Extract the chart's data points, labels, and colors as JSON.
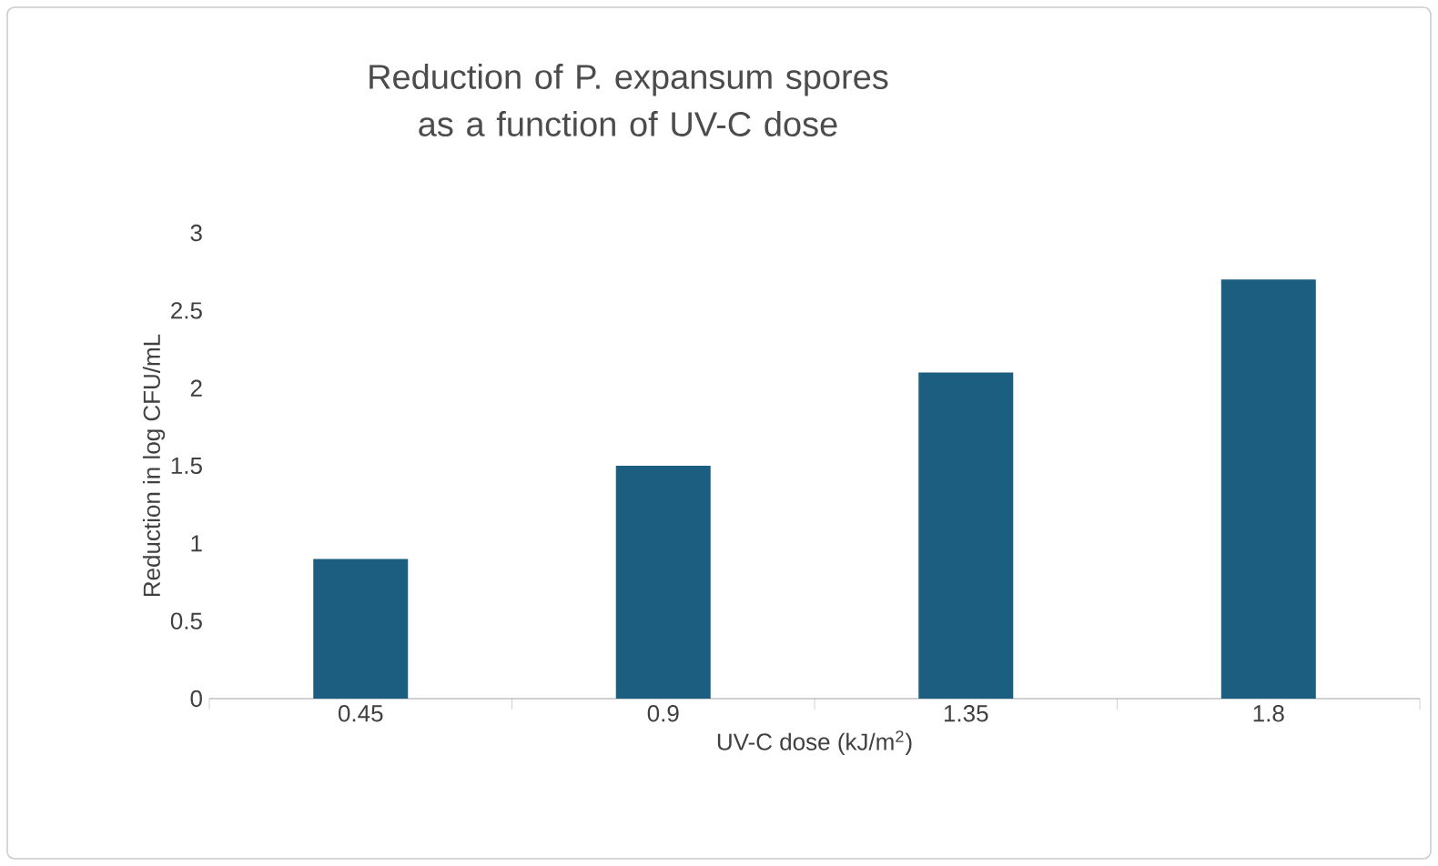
{
  "chart_data": {
    "type": "bar",
    "title": "Reduction of P. expansum spores as a function of UV-C dose",
    "categories": [
      "0.45",
      "0.9",
      "1.35",
      "1.8"
    ],
    "values": [
      0.9,
      1.5,
      2.1,
      2.7
    ],
    "color": "#1b5e80",
    "xlabel": "UV-C dose (kJ/m$^{2}$)",
    "ylabel": "Reduction in log CFU/mL",
    "ylim": [
      0,
      3
    ],
    "yticks": [
      0,
      0.5,
      1,
      1.5,
      2,
      2.5,
      3
    ]
  }
}
